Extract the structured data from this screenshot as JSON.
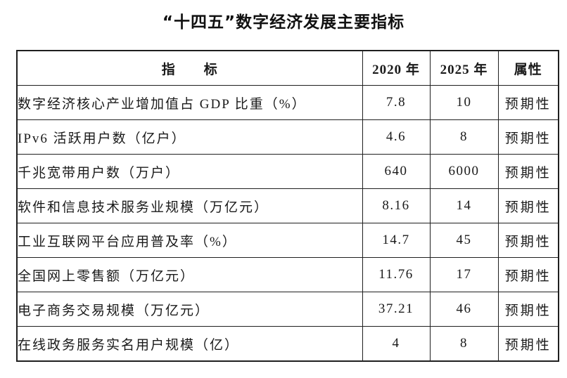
{
  "title": "“十四五”数字经济发展主要指标",
  "table": {
    "headers": [
      "指　　标",
      "2020 年",
      "2025 年",
      "属性"
    ],
    "rows": [
      {
        "indicator": "数字经济核心产业增加值占 GDP 比重（%）",
        "y2020": "7.8",
        "y2025": "10",
        "attribute": "预期性"
      },
      {
        "indicator": "IPv6 活跃用户数（亿户）",
        "y2020": "4.6",
        "y2025": "8",
        "attribute": "预期性"
      },
      {
        "indicator": "千兆宽带用户数（万户）",
        "y2020": "640",
        "y2025": "6000",
        "attribute": "预期性"
      },
      {
        "indicator": "软件和信息技术服务业规模（万亿元）",
        "y2020": "8.16",
        "y2025": "14",
        "attribute": "预期性"
      },
      {
        "indicator": "工业互联网平台应用普及率（%）",
        "y2020": "14.7",
        "y2025": "45",
        "attribute": "预期性"
      },
      {
        "indicator": "全国网上零售额（万亿元）",
        "y2020": "11.76",
        "y2025": "17",
        "attribute": "预期性"
      },
      {
        "indicator": "电子商务交易规模（万亿元）",
        "y2020": "37.21",
        "y2025": "46",
        "attribute": "预期性"
      },
      {
        "indicator": "在线政务服务实名用户规模（亿）",
        "y2020": "4",
        "y2025": "8",
        "attribute": "预期性"
      }
    ]
  }
}
